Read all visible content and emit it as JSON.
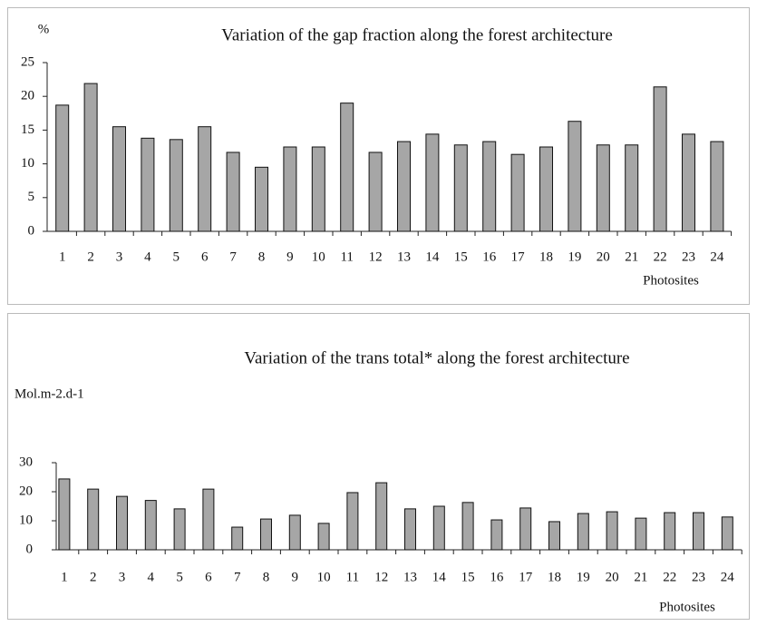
{
  "chart_data": [
    {
      "type": "bar",
      "title": "Variation of the gap fraction along the forest architecture",
      "y_label": "%",
      "x_label": "Photosites",
      "categories": [
        "1",
        "2",
        "3",
        "4",
        "5",
        "6",
        "7",
        "8",
        "9",
        "10",
        "11",
        "12",
        "13",
        "14",
        "15",
        "16",
        "17",
        "18",
        "19",
        "20",
        "21",
        "22",
        "23",
        "24"
      ],
      "values": [
        18.7,
        21.9,
        15.5,
        13.8,
        13.6,
        15.5,
        11.7,
        9.5,
        12.5,
        12.5,
        19,
        11.7,
        13.3,
        14.4,
        12.8,
        13.3,
        11.4,
        12.5,
        16.3,
        12.8,
        12.8,
        21.4,
        14.4,
        13.3
      ],
      "color": "#a6a6a6",
      "ylim": [
        0,
        25
      ],
      "yticks": [
        0,
        5,
        10,
        15,
        20,
        25
      ],
      "grid": false
    },
    {
      "type": "bar",
      "title": "Variation of the trans total* along the forest architecture",
      "y_label": "Mol.m-2.d-1",
      "x_label": "Photosites",
      "categories": [
        "1",
        "2",
        "3",
        "4",
        "5",
        "6",
        "7",
        "8",
        "9",
        "10",
        "11",
        "12",
        "13",
        "14",
        "15",
        "16",
        "17",
        "18",
        "19",
        "20",
        "21",
        "22",
        "23",
        "24"
      ],
      "values": [
        24.4,
        20.9,
        18.4,
        17,
        14.1,
        20.9,
        7.8,
        10.6,
        11.9,
        9.1,
        19.7,
        23.1,
        14.1,
        15,
        16.3,
        10.3,
        14.4,
        9.7,
        12.5,
        13.1,
        10.9,
        12.8,
        12.8,
        11.3
      ],
      "color": "#a6a6a6",
      "ylim": [
        0,
        30
      ],
      "yticks": [
        0,
        10,
        20,
        30
      ],
      "grid": false
    }
  ]
}
